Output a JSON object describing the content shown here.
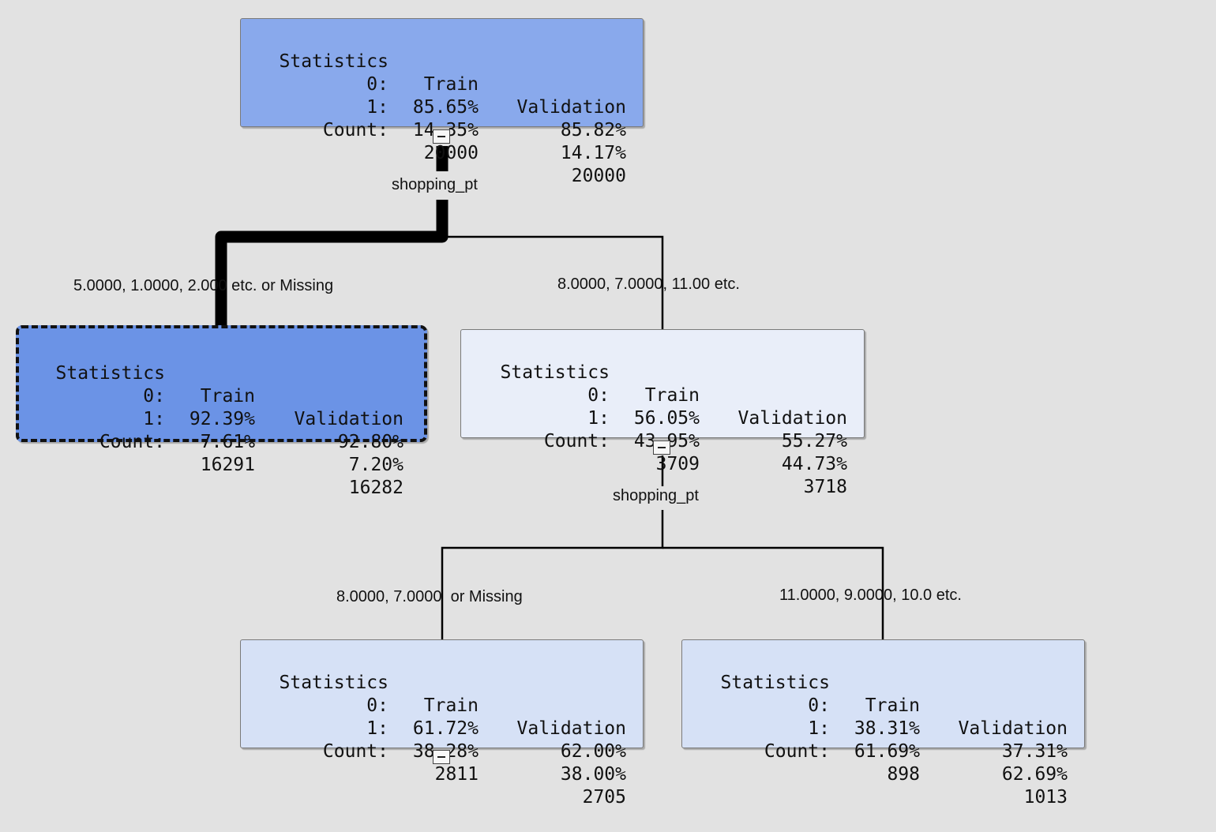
{
  "tree": {
    "nodes": [
      {
        "id": "root",
        "fill": "#89a9ec",
        "header": [
          "Statistics",
          "Train",
          "Validation"
        ],
        "rows": [
          [
            "0:",
            "85.65%",
            "85.82%"
          ],
          [
            "1:",
            "14.35%",
            "14.17%"
          ],
          [
            "Count:",
            "20000",
            "20000"
          ]
        ]
      },
      {
        "id": "left",
        "fill": "#6b93e6",
        "selected": true,
        "header": [
          "Statistics",
          "Train",
          "Validation"
        ],
        "rows": [
          [
            "0:",
            "92.39%",
            "92.80%"
          ],
          [
            "1:",
            "7.61%",
            "7.20%"
          ],
          [
            "Count:",
            "16291",
            "16282"
          ]
        ]
      },
      {
        "id": "right",
        "fill": "#e9eef9",
        "header": [
          "Statistics",
          "Train",
          "Validation"
        ],
        "rows": [
          [
            "0:",
            "56.05%",
            "55.27%"
          ],
          [
            "1:",
            "43.95%",
            "44.73%"
          ],
          [
            "Count:",
            "3709",
            "3718"
          ]
        ]
      },
      {
        "id": "right-left",
        "fill": "#d6e1f6",
        "header": [
          "Statistics",
          "Train",
          "Validation"
        ],
        "rows": [
          [
            "0:",
            "61.72%",
            "62.00%"
          ],
          [
            "1:",
            "38.28%",
            "38.00%"
          ],
          [
            "Count:",
            "2811",
            "2705"
          ]
        ]
      },
      {
        "id": "right-right",
        "fill": "#d6e1f6",
        "header": [
          "Statistics",
          "Train",
          "Validation"
        ],
        "rows": [
          [
            "0:",
            "38.31%",
            "37.31%"
          ],
          [
            "1:",
            "61.69%",
            "62.69%"
          ],
          [
            "Count:",
            "898",
            "1013"
          ]
        ]
      }
    ],
    "splits": [
      {
        "id": "split-root",
        "variable": "shopping_pt"
      },
      {
        "id": "split-right",
        "variable": "shopping_pt"
      }
    ],
    "branches": [
      {
        "id": "branch-left",
        "label": "5.0000, 1.0000, 2.000 etc. or Missing"
      },
      {
        "id": "branch-right",
        "label": "8.0000, 7.0000, 11.00 etc."
      },
      {
        "id": "branch-right-left",
        "label": "8.0000, 7.0000  or Missing"
      },
      {
        "id": "branch-right-right",
        "label": "11.0000, 9.0000, 10.0 etc."
      }
    ],
    "toggle_symbol": "−"
  }
}
